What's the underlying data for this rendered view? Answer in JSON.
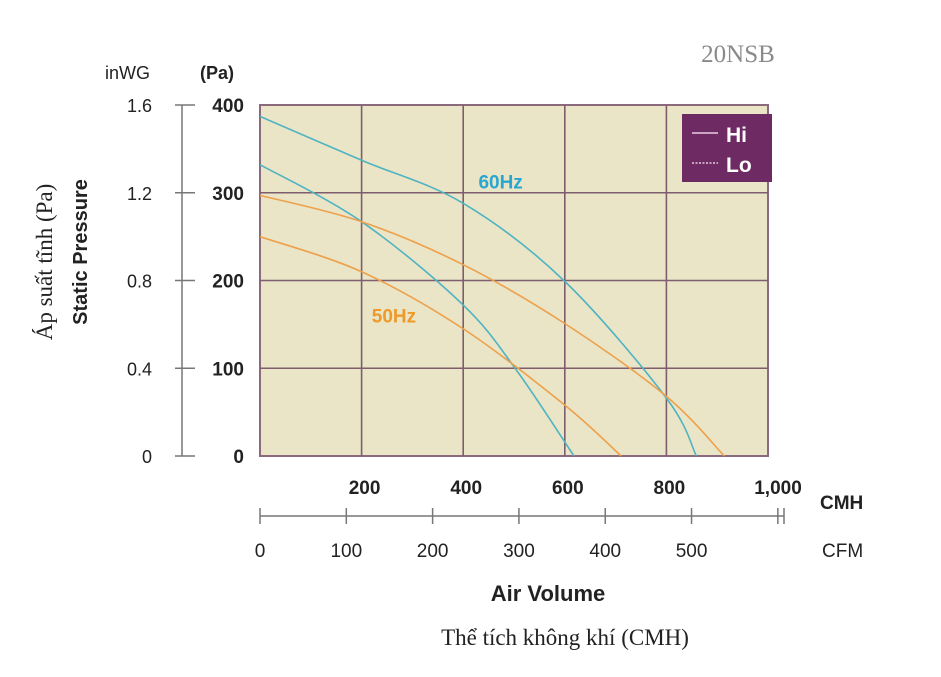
{
  "chart_data": {
    "type": "line",
    "model": "20NSB",
    "title": "",
    "xlabel": "Air Volume",
    "xlabel_vi": "Thể tích không khí (CMH)",
    "ylabel": "Static Pressure",
    "ylabel_vi": "Áp suất tĩnh (Pa)",
    "x_unit": "CMH",
    "x2_unit": "CFM",
    "y_unit": "(Pa)",
    "y2_unit": "inWG",
    "xlim": [
      0,
      1000
    ],
    "ylim": [
      0,
      400
    ],
    "x_ticks": [
      200,
      400,
      600,
      800,
      1000
    ],
    "x_tick_labels": [
      "200",
      "400",
      "600",
      "800",
      "1,000"
    ],
    "cfm_ticks": [
      0,
      100,
      200,
      300,
      400,
      500
    ],
    "cfm_tick_labels": [
      "0",
      "100",
      "200",
      "300",
      "400",
      "500"
    ],
    "y_ticks": [
      0,
      100,
      200,
      300,
      400
    ],
    "y_tick_labels": [
      "0",
      "100",
      "200",
      "300",
      "400"
    ],
    "inwg_tick_labels": [
      "0",
      "0.4",
      "0.8",
      "1.2",
      "1.6"
    ],
    "grid": true,
    "legend": {
      "position": "top-right",
      "entries": [
        "Hi",
        "Lo"
      ],
      "background": "#6e2a63"
    },
    "annotations": [
      {
        "text": "60Hz",
        "color": "#2aa6cf",
        "x": 430,
        "y": 305
      },
      {
        "text": "50Hz",
        "color": "#ee9a2a",
        "x": 220,
        "y": 152
      }
    ],
    "series": [
      {
        "name": "60Hz Hi",
        "color": "#4fb3c2",
        "x": [
          0,
          200,
          400,
          600,
          800,
          859
        ],
        "y": [
          387,
          337,
          288,
          199,
          66,
          0
        ]
      },
      {
        "name": "60Hz Lo",
        "color": "#4fb3c2",
        "x": [
          0,
          200,
          400,
          507,
          618
        ],
        "y": [
          332,
          267,
          172,
          96,
          0
        ]
      },
      {
        "name": "50Hz Hi",
        "color": "#eea04a",
        "x": [
          0,
          200,
          400,
          600,
          800,
          914
        ],
        "y": [
          297,
          267,
          218,
          151,
          68,
          0
        ]
      },
      {
        "name": "50Hz Lo",
        "color": "#eea04a",
        "x": [
          0,
          200,
          400,
          600,
          711
        ],
        "y": [
          250,
          210,
          145,
          58,
          0
        ]
      }
    ]
  }
}
